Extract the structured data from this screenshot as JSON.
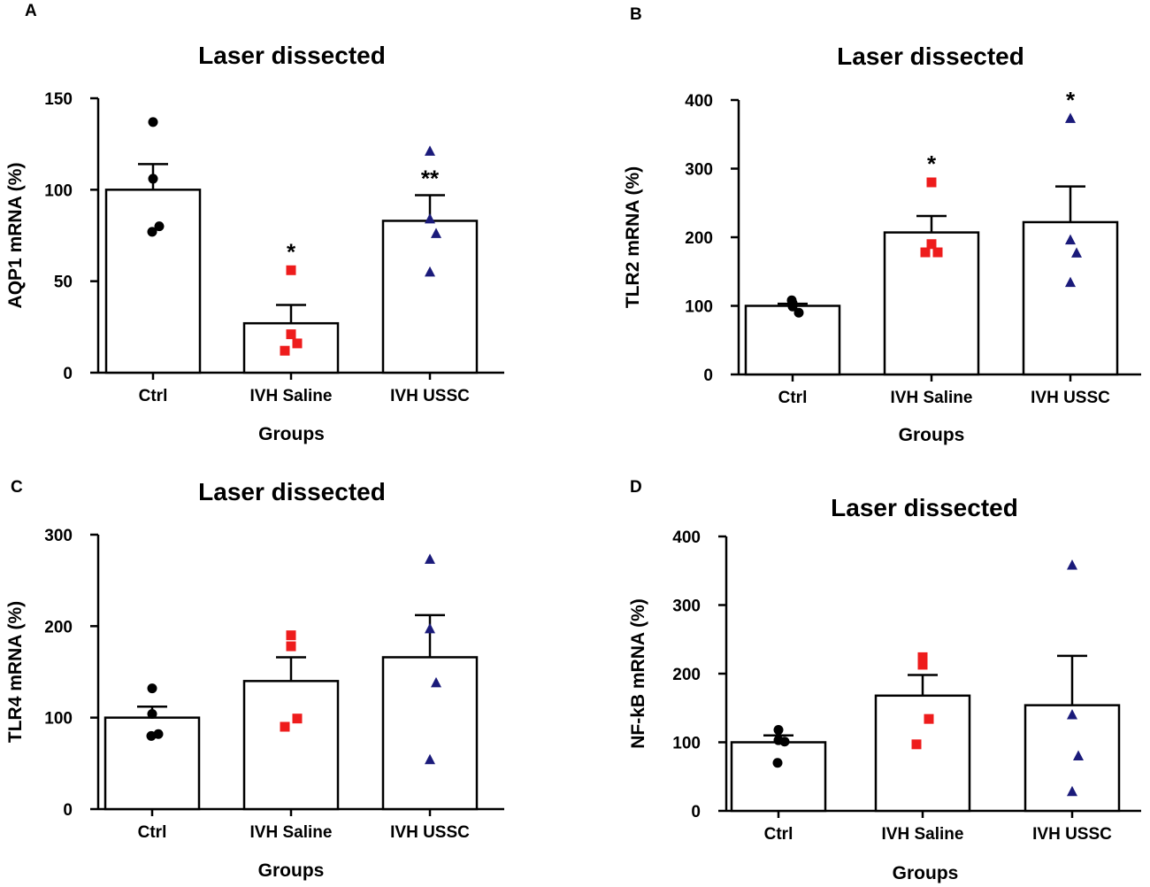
{
  "figure": {
    "group_colors": {
      "Ctrl": "#000000",
      "IVH Saline": "#ee1c1c",
      "IVH USSC": "#1a1a7a"
    },
    "group_markers": {
      "Ctrl": "circle",
      "IVH Saline": "square",
      "IVH USSC": "triangle"
    }
  },
  "chart_data": [
    {
      "panel": "A",
      "type": "bar",
      "title": "Laser dissected",
      "xlabel": "Groups",
      "ylabel": "AQP1 mRNA (%)",
      "ylim": [
        0,
        150
      ],
      "yticks": [
        0,
        50,
        100,
        150
      ],
      "categories": [
        "Ctrl",
        "IVH Saline",
        "IVH USSC"
      ],
      "values": [
        100,
        27,
        83
      ],
      "sem": [
        14,
        10,
        14
      ],
      "points": [
        [
          137,
          106,
          80,
          77
        ],
        [
          56,
          21,
          16,
          12
        ],
        [
          121,
          84,
          76,
          55
        ]
      ],
      "significance": [
        "",
        "*",
        "**"
      ]
    },
    {
      "panel": "B",
      "type": "bar",
      "title": "Laser dissected",
      "xlabel": "Groups",
      "ylabel": "TLR2 mRNA (%)",
      "ylim": [
        0,
        400
      ],
      "yticks": [
        0,
        100,
        200,
        300,
        400
      ],
      "categories": [
        "Ctrl",
        "IVH Saline",
        "IVH USSC"
      ],
      "values": [
        100,
        207,
        222
      ],
      "sem": [
        3,
        24,
        52
      ],
      "points": [
        [
          104,
          99,
          90,
          108
        ],
        [
          280,
          190,
          178,
          178
        ],
        [
          373,
          196,
          177,
          134
        ]
      ],
      "significance": [
        "",
        "*",
        "*"
      ]
    },
    {
      "panel": "C",
      "type": "bar",
      "title": "Laser dissected",
      "xlabel": "Groups",
      "ylabel": "TLR4 mRNA (%)",
      "ylim": [
        0,
        300
      ],
      "yticks": [
        0,
        100,
        200,
        300
      ],
      "categories": [
        "Ctrl",
        "IVH Saline",
        "IVH USSC"
      ],
      "values": [
        100,
        140,
        166
      ],
      "sem": [
        12,
        26,
        46
      ],
      "points": [
        [
          132,
          104,
          82,
          80
        ],
        [
          190,
          178,
          99,
          90
        ],
        [
          273,
          197,
          138,
          54
        ]
      ],
      "significance": [
        "",
        "",
        ""
      ]
    },
    {
      "panel": "D",
      "type": "bar",
      "title": "Laser dissected",
      "xlabel": "Groups",
      "ylabel": "NF-kB mRNA (%)",
      "ylim": [
        0,
        400
      ],
      "yticks": [
        0,
        100,
        200,
        300,
        400
      ],
      "categories": [
        "Ctrl",
        "IVH Saline",
        "IVH USSC"
      ],
      "values": [
        100,
        168,
        154
      ],
      "sem": [
        10,
        30,
        72
      ],
      "points": [
        [
          118,
          103,
          101,
          70
        ],
        [
          224,
          213,
          134,
          97
        ],
        [
          358,
          140,
          80,
          28
        ]
      ],
      "significance": [
        "",
        "",
        ""
      ]
    }
  ]
}
